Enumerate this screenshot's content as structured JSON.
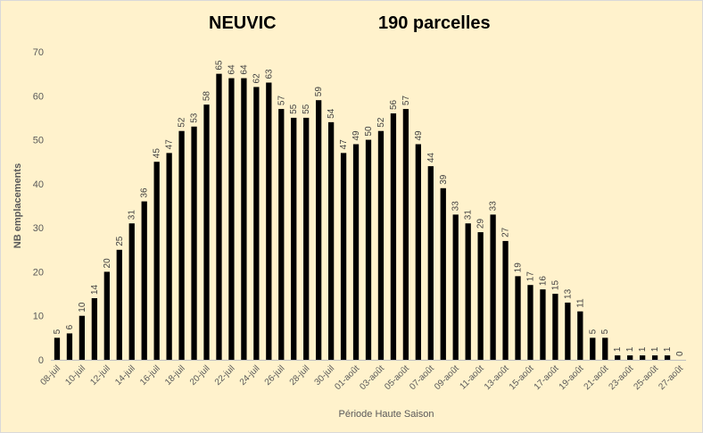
{
  "chart_data": {
    "type": "bar",
    "title": "NEUVIC",
    "subtitle": "190 parcelles",
    "xlabel": "Période Haute Saison",
    "ylabel": "NB emplacements",
    "ylim": [
      0,
      70
    ],
    "yticks": [
      0,
      10,
      20,
      30,
      40,
      50,
      60,
      70
    ],
    "grid": false,
    "bar_color": "#000000",
    "background_color": "#fff2cc",
    "tick_labels": [
      "08-juil",
      "10-juil",
      "12-juil",
      "14-juil",
      "16-juil",
      "18-juil",
      "20-juil",
      "22-juil",
      "24-juil",
      "26-juil",
      "28-juil",
      "30-juil",
      "01-août",
      "03-août",
      "05-août",
      "07-août",
      "09-août",
      "11-août",
      "13-août",
      "15-août",
      "17-août",
      "19-août",
      "21-août",
      "23-août",
      "25-août",
      "27-août"
    ],
    "categories": [
      "08-juil",
      "09-juil",
      "10-juil",
      "11-juil",
      "12-juil",
      "13-juil",
      "14-juil",
      "15-juil",
      "16-juil",
      "17-juil",
      "18-juil",
      "19-juil",
      "20-juil",
      "21-juil",
      "22-juil",
      "23-juil",
      "24-juil",
      "25-juil",
      "26-juil",
      "27-juil",
      "28-juil",
      "29-juil",
      "30-juil",
      "31-juil",
      "01-août",
      "02-août",
      "03-août",
      "04-août",
      "05-août",
      "06-août",
      "07-août",
      "08-août",
      "09-août",
      "10-août",
      "11-août",
      "12-août",
      "13-août",
      "14-août",
      "15-août",
      "16-août",
      "17-août",
      "18-août",
      "19-août",
      "20-août",
      "21-août",
      "22-août",
      "23-août",
      "24-août",
      "25-août",
      "26-août",
      "27-août"
    ],
    "values": [
      5,
      6,
      10,
      14,
      20,
      25,
      31,
      36,
      45,
      47,
      52,
      53,
      58,
      65,
      64,
      64,
      62,
      63,
      57,
      55,
      55,
      59,
      54,
      47,
      49,
      50,
      52,
      56,
      57,
      49,
      44,
      39,
      33,
      31,
      29,
      33,
      27,
      19,
      17,
      16,
      15,
      13,
      11,
      5,
      5,
      1,
      1,
      1,
      1,
      1,
      0
    ]
  }
}
